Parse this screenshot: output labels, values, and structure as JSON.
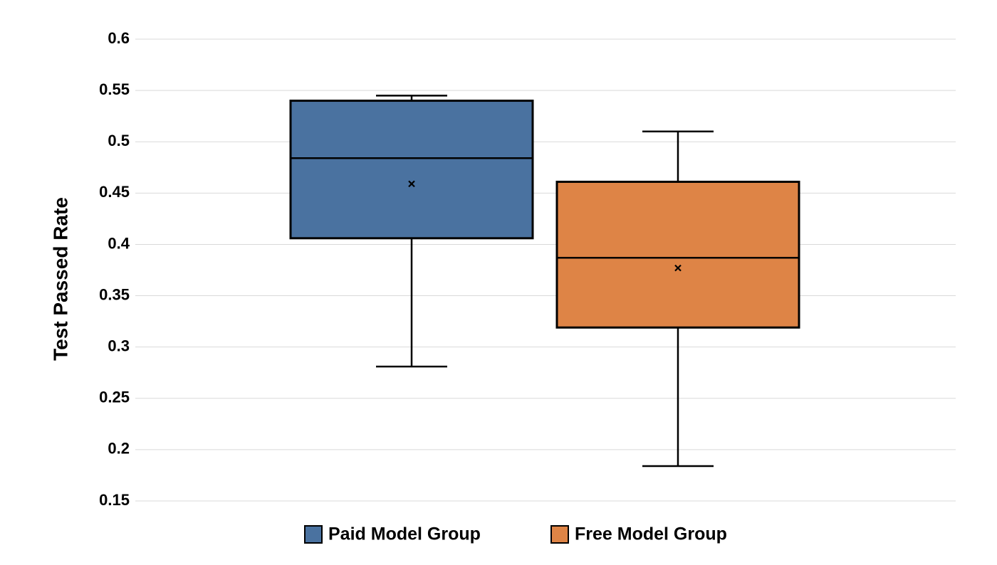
{
  "chart_data": {
    "type": "box",
    "title": "",
    "xlabel": "",
    "ylabel": "Test Passed Rate",
    "ylim": [
      0.15,
      0.6
    ],
    "yticks": [
      "0.15",
      "0.2",
      "0.25",
      "0.3",
      "0.35",
      "0.4",
      "0.45",
      "0.5",
      "0.55",
      "0.6"
    ],
    "grid": true,
    "legend_position": "bottom",
    "series": [
      {
        "name": "Paid Model Group",
        "color": "#4a72a0",
        "whisker_low": 0.281,
        "q1": 0.406,
        "median": 0.484,
        "q3": 0.54,
        "whisker_high": 0.545,
        "mean": 0.459
      },
      {
        "name": "Free Model Group",
        "color": "#de8446",
        "whisker_low": 0.184,
        "q1": 0.319,
        "median": 0.387,
        "q3": 0.461,
        "whisker_high": 0.51,
        "mean": 0.377
      }
    ]
  }
}
